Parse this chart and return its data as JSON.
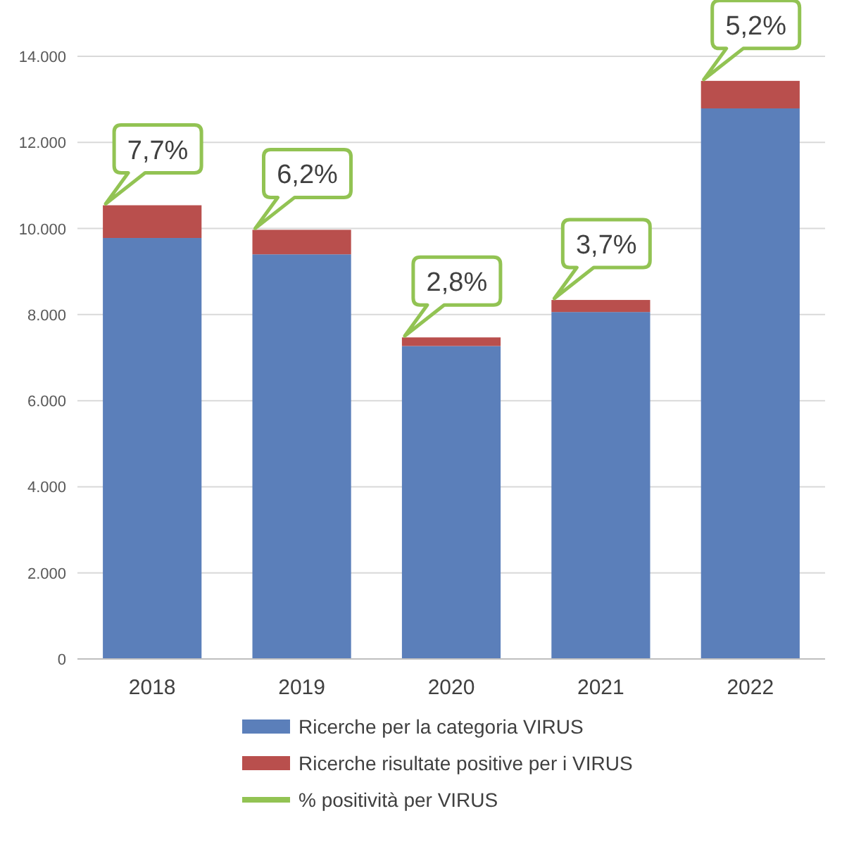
{
  "chart_data": {
    "type": "bar",
    "stacked": true,
    "categories": [
      "2018",
      "2019",
      "2020",
      "2021",
      "2022"
    ],
    "series": [
      {
        "name": "Ricerche per la categoria VIRUS",
        "color": "#5b7fba",
        "values": [
          9780,
          9400,
          7270,
          8060,
          12790
        ]
      },
      {
        "name": "Ricerche risultate positive per i VIRUS",
        "color": "#b94f4d",
        "values": [
          760,
          570,
          200,
          280,
          640
        ]
      },
      {
        "name": "% positività per VIRUS",
        "color": "#92c353",
        "type": "line",
        "values": [
          null,
          null,
          null,
          null,
          null
        ]
      }
    ],
    "annotations": [
      {
        "text": "7,7%",
        "x": "2018",
        "y": 10540
      },
      {
        "text": "6,2%",
        "x": "2019",
        "y": 9970
      },
      {
        "text": "2,8%",
        "x": "2020",
        "y": 7470
      },
      {
        "text": "3,7%",
        "x": "2021",
        "y": 8340
      },
      {
        "text": "5,2%",
        "x": "2022",
        "y": 13430
      }
    ],
    "ylim": [
      0,
      14000
    ],
    "yticks": [
      0,
      {
        "value": 2000,
        "label": "2.000"
      },
      {
        "value": 4000,
        "label": "4.000"
      },
      {
        "value": 6000,
        "label": "6.000"
      },
      {
        "value": 8000,
        "label": "8.000"
      },
      {
        "value": 10000,
        "label": "10.000"
      },
      {
        "value": 12000,
        "label": "12.000"
      },
      {
        "value": 14000,
        "label": "14.000"
      }
    ],
    "grid": "y",
    "legend": "bottom"
  }
}
